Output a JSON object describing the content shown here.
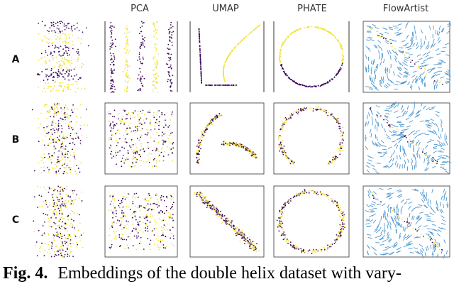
{
  "figure": {
    "columns": [
      "PCA",
      "UMAP",
      "PHATE",
      "FlowArtist"
    ],
    "rows": [
      "A",
      "B",
      "C"
    ],
    "caption": {
      "label": "Fig. 4.",
      "text": "Embeddings of the double helix dataset with vary-"
    }
  }
}
